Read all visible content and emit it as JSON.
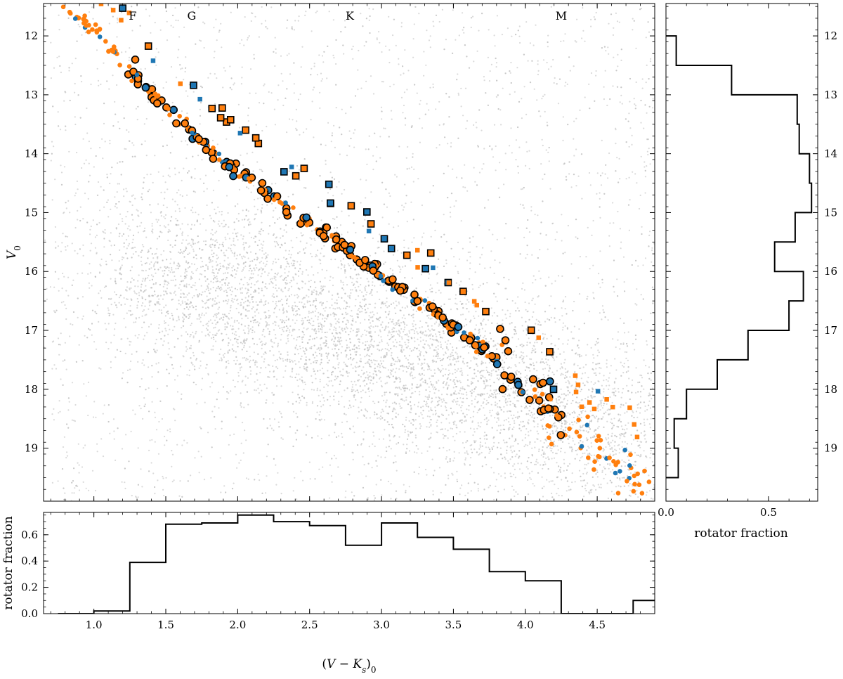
{
  "chart_data": [
    {
      "panel": "cmd",
      "type": "scatter",
      "xlabel": "(V − K_s)_0",
      "ylabel": "V_0",
      "xlim": [
        0.65,
        4.9
      ],
      "ylim": [
        19.9,
        11.45
      ],
      "y_inverted": true,
      "x_ticks": [
        1.0,
        1.5,
        2.0,
        2.5,
        3.0,
        3.5,
        4.0,
        4.5
      ],
      "y_ticks": [
        12,
        13,
        14,
        15,
        16,
        17,
        18,
        19
      ],
      "y_tick_labels": [
        "12",
        "13",
        "14",
        "15",
        "16",
        "17",
        "18",
        "19"
      ],
      "spectral_types": [
        {
          "label": "F",
          "x": 1.27
        },
        {
          "label": "G",
          "x": 1.68
        },
        {
          "label": "K",
          "x": 2.78
        },
        {
          "label": "M",
          "x": 4.25
        }
      ],
      "series": [
        {
          "color": "#bcbcbc",
          "marker": "dot",
          "description_points": "field stars",
          "note": "dense background population, peak near x 2.0-3.5, V 17-19"
        },
        {
          "color": "#ff7f0e",
          "marker": "circle",
          "role": "single members"
        },
        {
          "color": "#1f77b4",
          "marker": "circle",
          "role": "single members"
        },
        {
          "color": "#ff7f0e",
          "marker": "square",
          "role": "binary members"
        },
        {
          "color": "#1f77b4",
          "marker": "square",
          "role": "binary members"
        }
      ],
      "sequence_samples": {
        "main_sequence": [
          [
            0.8,
            11.5
          ],
          [
            1.0,
            11.9
          ],
          [
            1.25,
            12.6
          ],
          [
            1.5,
            13.2
          ],
          [
            1.75,
            13.8
          ],
          [
            2.0,
            14.3
          ],
          [
            2.25,
            14.75
          ],
          [
            2.5,
            15.2
          ],
          [
            2.75,
            15.6
          ],
          [
            3.0,
            16.05
          ],
          [
            3.25,
            16.5
          ],
          [
            3.5,
            16.9
          ],
          [
            3.75,
            17.4
          ],
          [
            4.0,
            17.9
          ],
          [
            4.25,
            18.5
          ],
          [
            4.5,
            19.0
          ],
          [
            4.75,
            19.45
          ]
        ]
      },
      "grid": false
    },
    {
      "panel": "bottom-histogram",
      "type": "step",
      "ylabel": "rotator fraction",
      "xlim": [
        0.65,
        4.9
      ],
      "ylim": [
        0.0,
        0.77
      ],
      "y_ticks": [
        0.0,
        0.2,
        0.4,
        0.6
      ],
      "y_tick_labels": [
        "0.0",
        "0.2",
        "0.4",
        "0.6"
      ],
      "x_tick_labels": [
        "1.0",
        "1.5",
        "2.0",
        "2.5",
        "3.0",
        "3.5",
        "4.0",
        "4.5"
      ],
      "bin_edges": [
        0.75,
        1.0,
        1.25,
        1.5,
        1.75,
        2.0,
        2.25,
        2.5,
        2.75,
        3.0,
        3.25,
        3.5,
        3.75,
        4.0,
        4.25,
        4.5,
        4.75,
        4.9
      ],
      "values": [
        0.0,
        0.02,
        0.39,
        0.68,
        0.69,
        0.75,
        0.7,
        0.67,
        0.52,
        0.69,
        0.58,
        0.49,
        0.32,
        0.25,
        0.0,
        0.0,
        0.1
      ]
    },
    {
      "panel": "right-histogram",
      "type": "step-horizontal",
      "xlabel": "rotator fraction",
      "xlim": [
        0.0,
        0.74
      ],
      "x_ticks": [
        0.0,
        0.5
      ],
      "x_tick_labels": [
        "0.0",
        "0.5"
      ],
      "y_tick_labels": [
        "12",
        "13",
        "14",
        "15",
        "16",
        "17",
        "18",
        "19"
      ],
      "bin_edges": [
        12.0,
        12.5,
        13.0,
        13.5,
        14.0,
        14.5,
        15.0,
        15.5,
        16.0,
        16.5,
        17.0,
        17.5,
        18.0,
        18.5,
        19.0,
        19.5
      ],
      "values": [
        0.05,
        0.32,
        0.64,
        0.65,
        0.7,
        0.71,
        0.63,
        0.53,
        0.67,
        0.6,
        0.4,
        0.25,
        0.1,
        0.04,
        0.06
      ]
    }
  ]
}
